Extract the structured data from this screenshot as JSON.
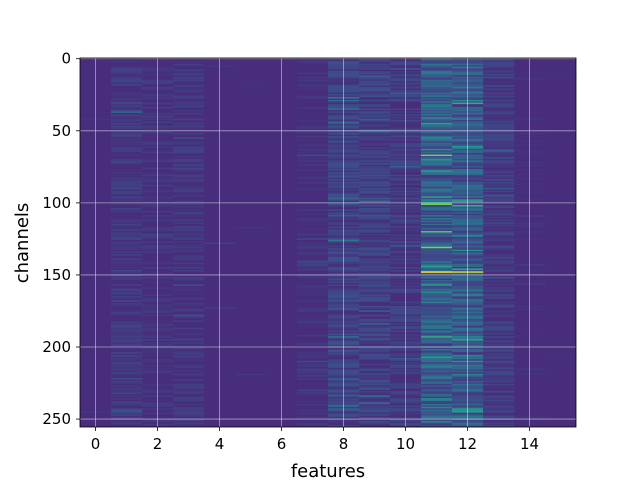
{
  "chart_data": {
    "type": "heatmap",
    "title": "",
    "xlabel": "features",
    "ylabel": "channels",
    "x_range": [
      -0.5,
      15.5
    ],
    "y_range": [
      255.5,
      -0.5
    ],
    "y_inverted": true,
    "rows": 256,
    "cols": 16,
    "x_ticks": [
      0,
      2,
      4,
      6,
      8,
      10,
      12,
      14
    ],
    "y_ticks": [
      0,
      50,
      100,
      150,
      200,
      250
    ],
    "grid": true,
    "colormap": "viridis",
    "colorbar": false,
    "colors": {
      "background": "#472d7b",
      "low": "#46317e",
      "mid": "#2a788e",
      "high": "#fde725",
      "grid": "#ffffff"
    },
    "column_intensity": [
      0.05,
      0.12,
      0.1,
      0.11,
      0.06,
      0.05,
      0.05,
      0.09,
      0.17,
      0.16,
      0.14,
      0.32,
      0.3,
      0.14,
      0.07,
      0.05
    ],
    "hotspots": [
      {
        "feature": 11,
        "channel": 45,
        "value": 0.7
      },
      {
        "feature": 11,
        "channel": 55,
        "value": 0.55
      },
      {
        "feature": 11,
        "channel": 63,
        "value": 0.6
      },
      {
        "feature": 11,
        "channel": 91,
        "value": 0.5
      },
      {
        "feature": 12,
        "channel": 98,
        "value": 0.65
      },
      {
        "feature": 12,
        "channel": 133,
        "value": 0.6
      },
      {
        "feature": 11,
        "channel": 148,
        "value": 1.0
      },
      {
        "feature": 12,
        "channel": 148,
        "value": 0.95
      },
      {
        "feature": 11,
        "channel": 193,
        "value": 0.75
      },
      {
        "feature": 12,
        "channel": 193,
        "value": 0.55
      },
      {
        "feature": 12,
        "channel": 243,
        "value": 0.65
      },
      {
        "feature": 12,
        "channel": 244,
        "value": 0.6
      },
      {
        "feature": 8,
        "channel": 126,
        "value": 0.45
      },
      {
        "feature": 11,
        "channel": 221,
        "value": 0.5
      },
      {
        "feature": 12,
        "channel": 213,
        "value": 0.45
      }
    ]
  }
}
